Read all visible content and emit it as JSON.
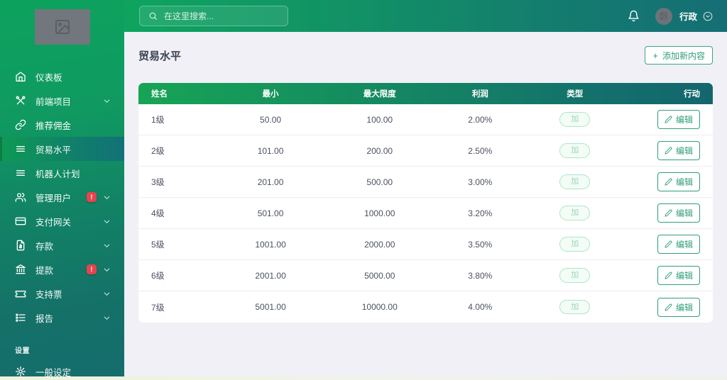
{
  "topbar": {
    "search_placeholder": "在这里搜索...",
    "user_name": "行政"
  },
  "sidebar": {
    "items": [
      {
        "id": "dashboard",
        "label": "仪表板",
        "icon": "home-icon",
        "active": false,
        "badge": null,
        "expandable": false
      },
      {
        "id": "frontend-project",
        "label": "前端项目",
        "icon": "tools-icon",
        "active": false,
        "badge": null,
        "expandable": true
      },
      {
        "id": "referral-commission",
        "label": "推荐佣金",
        "icon": "link-icon",
        "active": false,
        "badge": null,
        "expandable": false
      },
      {
        "id": "trade-level",
        "label": "贸易水平",
        "icon": "list-icon",
        "active": true,
        "badge": null,
        "expandable": false
      },
      {
        "id": "robot-plan",
        "label": "机器人计划",
        "icon": "list-icon",
        "active": false,
        "badge": null,
        "expandable": false
      },
      {
        "id": "manage-users",
        "label": "管理用户",
        "icon": "users-icon",
        "active": false,
        "badge": "!",
        "expandable": true
      },
      {
        "id": "payment-gateway",
        "label": "支付网关",
        "icon": "credit-card-icon",
        "active": false,
        "badge": null,
        "expandable": true
      },
      {
        "id": "deposits",
        "label": "存款",
        "icon": "file-dollar-icon",
        "active": false,
        "badge": null,
        "expandable": true
      },
      {
        "id": "withdrawals",
        "label": "提款",
        "icon": "bank-icon",
        "active": false,
        "badge": "!",
        "expandable": true
      },
      {
        "id": "support-ticket",
        "label": "支持票",
        "icon": "ticket-icon",
        "active": false,
        "badge": null,
        "expandable": true
      },
      {
        "id": "reports",
        "label": "报告",
        "icon": "report-icon",
        "active": false,
        "badge": null,
        "expandable": true
      }
    ],
    "settings_section_label": "设置",
    "settings_item": {
      "id": "general-settings",
      "label": "一般设定",
      "icon": "gear-icon"
    }
  },
  "page": {
    "title": "贸易水平",
    "add_button_label": "添加新内容",
    "add_button_plus": "+"
  },
  "table": {
    "headers": [
      "姓名",
      "最小",
      "最大限度",
      "利润",
      "类型",
      "行动"
    ],
    "edit_label": "编辑",
    "rows": [
      {
        "name": "1级",
        "min": "50.00",
        "max": "100.00",
        "profit": "2.00%",
        "type": "加"
      },
      {
        "name": "2级",
        "min": "101.00",
        "max": "200.00",
        "profit": "2.50%",
        "type": "加"
      },
      {
        "name": "3级",
        "min": "201.00",
        "max": "500.00",
        "profit": "3.00%",
        "type": "加"
      },
      {
        "name": "4级",
        "min": "501.00",
        "max": "1000.00",
        "profit": "3.20%",
        "type": "加"
      },
      {
        "name": "5级",
        "min": "1001.00",
        "max": "2000.00",
        "profit": "3.50%",
        "type": "加"
      },
      {
        "name": "6级",
        "min": "2001.00",
        "max": "5000.00",
        "profit": "3.80%",
        "type": "加"
      },
      {
        "name": "7级",
        "min": "5001.00",
        "max": "10000.00",
        "profit": "4.00%",
        "type": "加"
      }
    ]
  },
  "colors": {
    "brand_green": "#0fa45f",
    "brand_teal": "#156d6e",
    "badge_red": "#e8434e",
    "action_green": "#2f9e7c",
    "content_bg": "#f0f0f6"
  }
}
